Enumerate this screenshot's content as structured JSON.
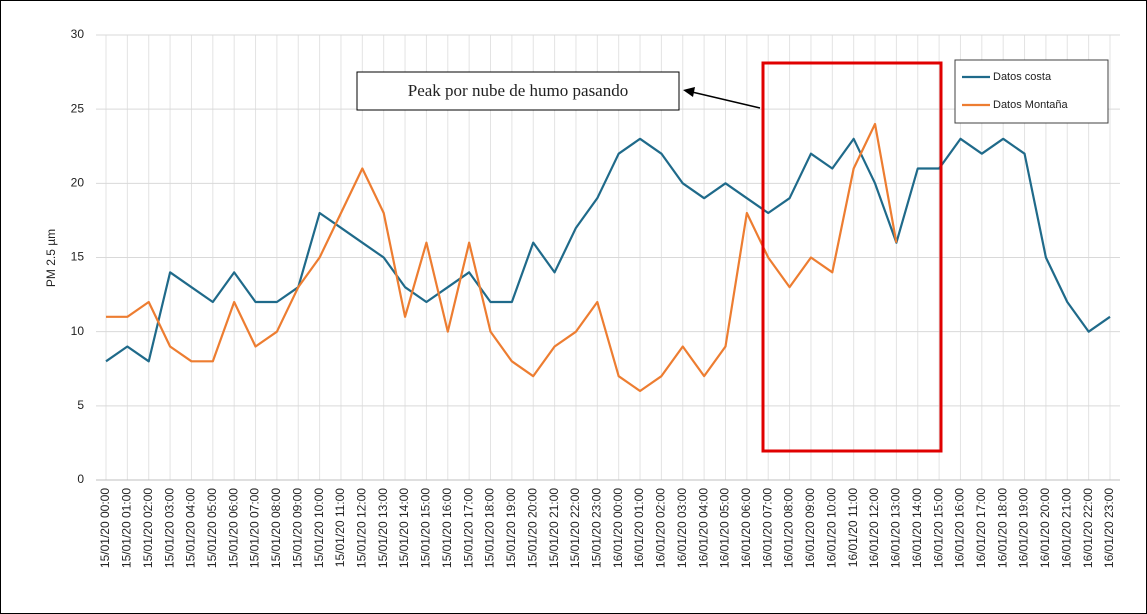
{
  "chart_data": {
    "type": "line",
    "y_label": "PM 2.5 µm",
    "annotation": "Peak por nube de humo pasando",
    "categories": [
      "15/01/20 00:00",
      "15/01/20 01:00",
      "15/01/20 02:00",
      "15/01/20 03:00",
      "15/01/20 04:00",
      "15/01/20 05:00",
      "15/01/20 06:00",
      "15/01/20 07:00",
      "15/01/20 08:00",
      "15/01/20 09:00",
      "15/01/20 10:00",
      "15/01/20 11:00",
      "15/01/20 12:00",
      "15/01/20 13:00",
      "15/01/20 14:00",
      "15/01/20 15:00",
      "15/01/20 16:00",
      "15/01/20 17:00",
      "15/01/20 18:00",
      "15/01/20 19:00",
      "15/01/20 20:00",
      "15/01/20 21:00",
      "15/01/20 22:00",
      "15/01/20 23:00",
      "16/01/20 00:00",
      "16/01/20 01:00",
      "16/01/20 02:00",
      "16/01/20 03:00",
      "16/01/20 04:00",
      "16/01/20 05:00",
      "16/01/20 06:00",
      "16/01/20 07:00",
      "16/01/20 08:00",
      "16/01/20 09:00",
      "16/01/20 10:00",
      "16/01/20 11:00",
      "16/01/20 12:00",
      "16/01/20 13:00",
      "16/01/20 14:00",
      "16/01/20 15:00",
      "16/01/20 16:00",
      "16/01/20 17:00",
      "16/01/20 18:00",
      "16/01/20 19:00",
      "16/01/20 20:00",
      "16/01/20 21:00",
      "16/01/20 22:00",
      "16/01/20 23:00"
    ],
    "series": [
      {
        "name": "Datos costa",
        "color": "#1f6a8a",
        "values": [
          8,
          9,
          8,
          14,
          13,
          12,
          14,
          12,
          12,
          13,
          18,
          17,
          16,
          15,
          13,
          12,
          13,
          14,
          12,
          12,
          16,
          14,
          17,
          19,
          22,
          23,
          22,
          20,
          19,
          20,
          19,
          18,
          19,
          22,
          21,
          23,
          20,
          16,
          21,
          21,
          23,
          22,
          23,
          22,
          15,
          12,
          10,
          11
        ]
      },
      {
        "name": "Datos Montaña",
        "color": "#ed7d31",
        "values": [
          11,
          11,
          12,
          9,
          8,
          8,
          12,
          9,
          10,
          13,
          15,
          18,
          21,
          18,
          11,
          16,
          10,
          16,
          10,
          8,
          7,
          9,
          10,
          12,
          7,
          6,
          7,
          9,
          7,
          9,
          18,
          15,
          13,
          15,
          14,
          21,
          24,
          16,
          null,
          null,
          null,
          null,
          null,
          null,
          null,
          null,
          null,
          null
        ]
      }
    ],
    "ylim": [
      0,
      30
    ],
    "yticks": [
      0,
      5,
      10,
      15,
      20,
      25,
      30
    ],
    "grid": true
  }
}
